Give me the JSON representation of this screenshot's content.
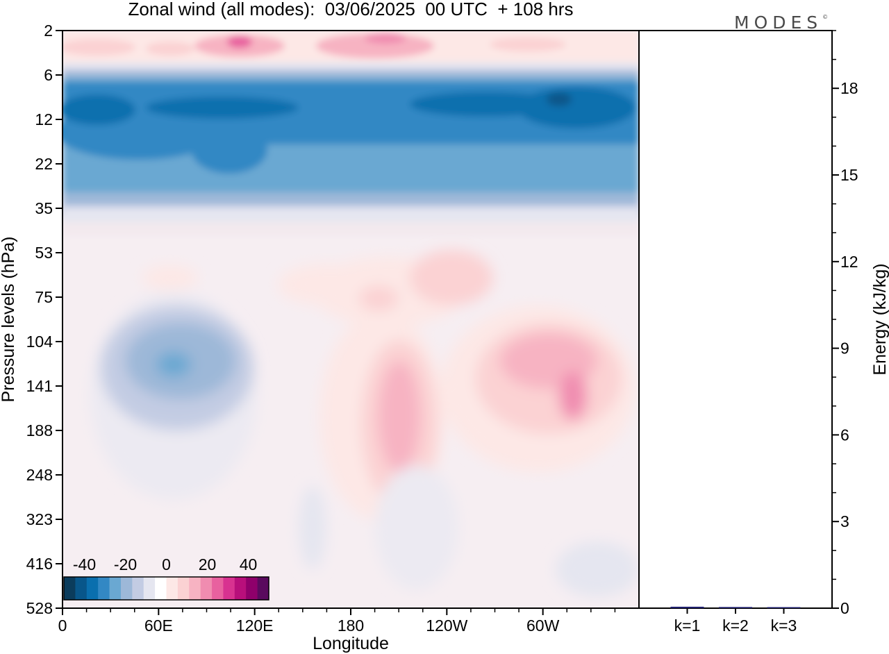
{
  "title": "Zonal wind (all modes):  03/06/2025  00 UTC  + 108 hrs",
  "logo": "MODES",
  "logo_mark": "©",
  "chart_data": [
    {
      "type": "heatmap",
      "title": "Zonal wind (all modes):  03/06/2025  00 UTC  + 108 hrs",
      "xlabel": "Longitude",
      "ylabel": "Pressure levels (hPa)",
      "x_ticks": [
        "0",
        "60E",
        "120E",
        "180",
        "120W",
        "60W"
      ],
      "x_tick_values": [
        0,
        60,
        120,
        180,
        240,
        300
      ],
      "xlim": [
        0,
        360
      ],
      "y_ticks": [
        "2",
        "6",
        "12",
        "22",
        "35",
        "53",
        "75",
        "104",
        "141",
        "188",
        "248",
        "323",
        "416",
        "528"
      ],
      "colorbar": {
        "ticks": [
          "-40",
          "-20",
          "0",
          "20",
          "40"
        ],
        "range": [
          -50,
          50
        ],
        "step": 5,
        "colors": [
          "#0b3c5c",
          "#08568a",
          "#0a6fae",
          "#3388c4",
          "#6aa8d2",
          "#9db8d8",
          "#c3cce3",
          "#e5e6f0",
          "#ffffff",
          "#fde8e6",
          "#fbd2d3",
          "#f7b3c2",
          "#f08cb0",
          "#e8619f",
          "#d83290",
          "#b80f7b",
          "#8f006b",
          "#5a0a5e"
        ]
      },
      "field_description": [
        {
          "region": "near 2-6 hPa",
          "u_approx": 10
        },
        {
          "region": "8-25 hPa band",
          "u_approx": -35
        },
        {
          "region": "east of 60W near 10 hPa",
          "u_approx": -45
        },
        {
          "region": "60E-120E near 100-150 hPa",
          "u_approx": -25
        },
        {
          "region": "near 180-210 longitude 120-250 hPa",
          "u_approx": 15
        },
        {
          "region": "near 70W 100-180 hPa",
          "u_approx": 20
        }
      ]
    },
    {
      "type": "bar",
      "ylabel": "Energy (kJ/kg)",
      "categories": [
        "k=1",
        "k=2",
        "k=3"
      ],
      "values": [
        0.05,
        0.04,
        0.03
      ],
      "ylim": [
        0,
        20
      ],
      "y_ticks": [
        0,
        3,
        6,
        9,
        12,
        15,
        18
      ],
      "bar_color": "#1f1f6e"
    }
  ]
}
